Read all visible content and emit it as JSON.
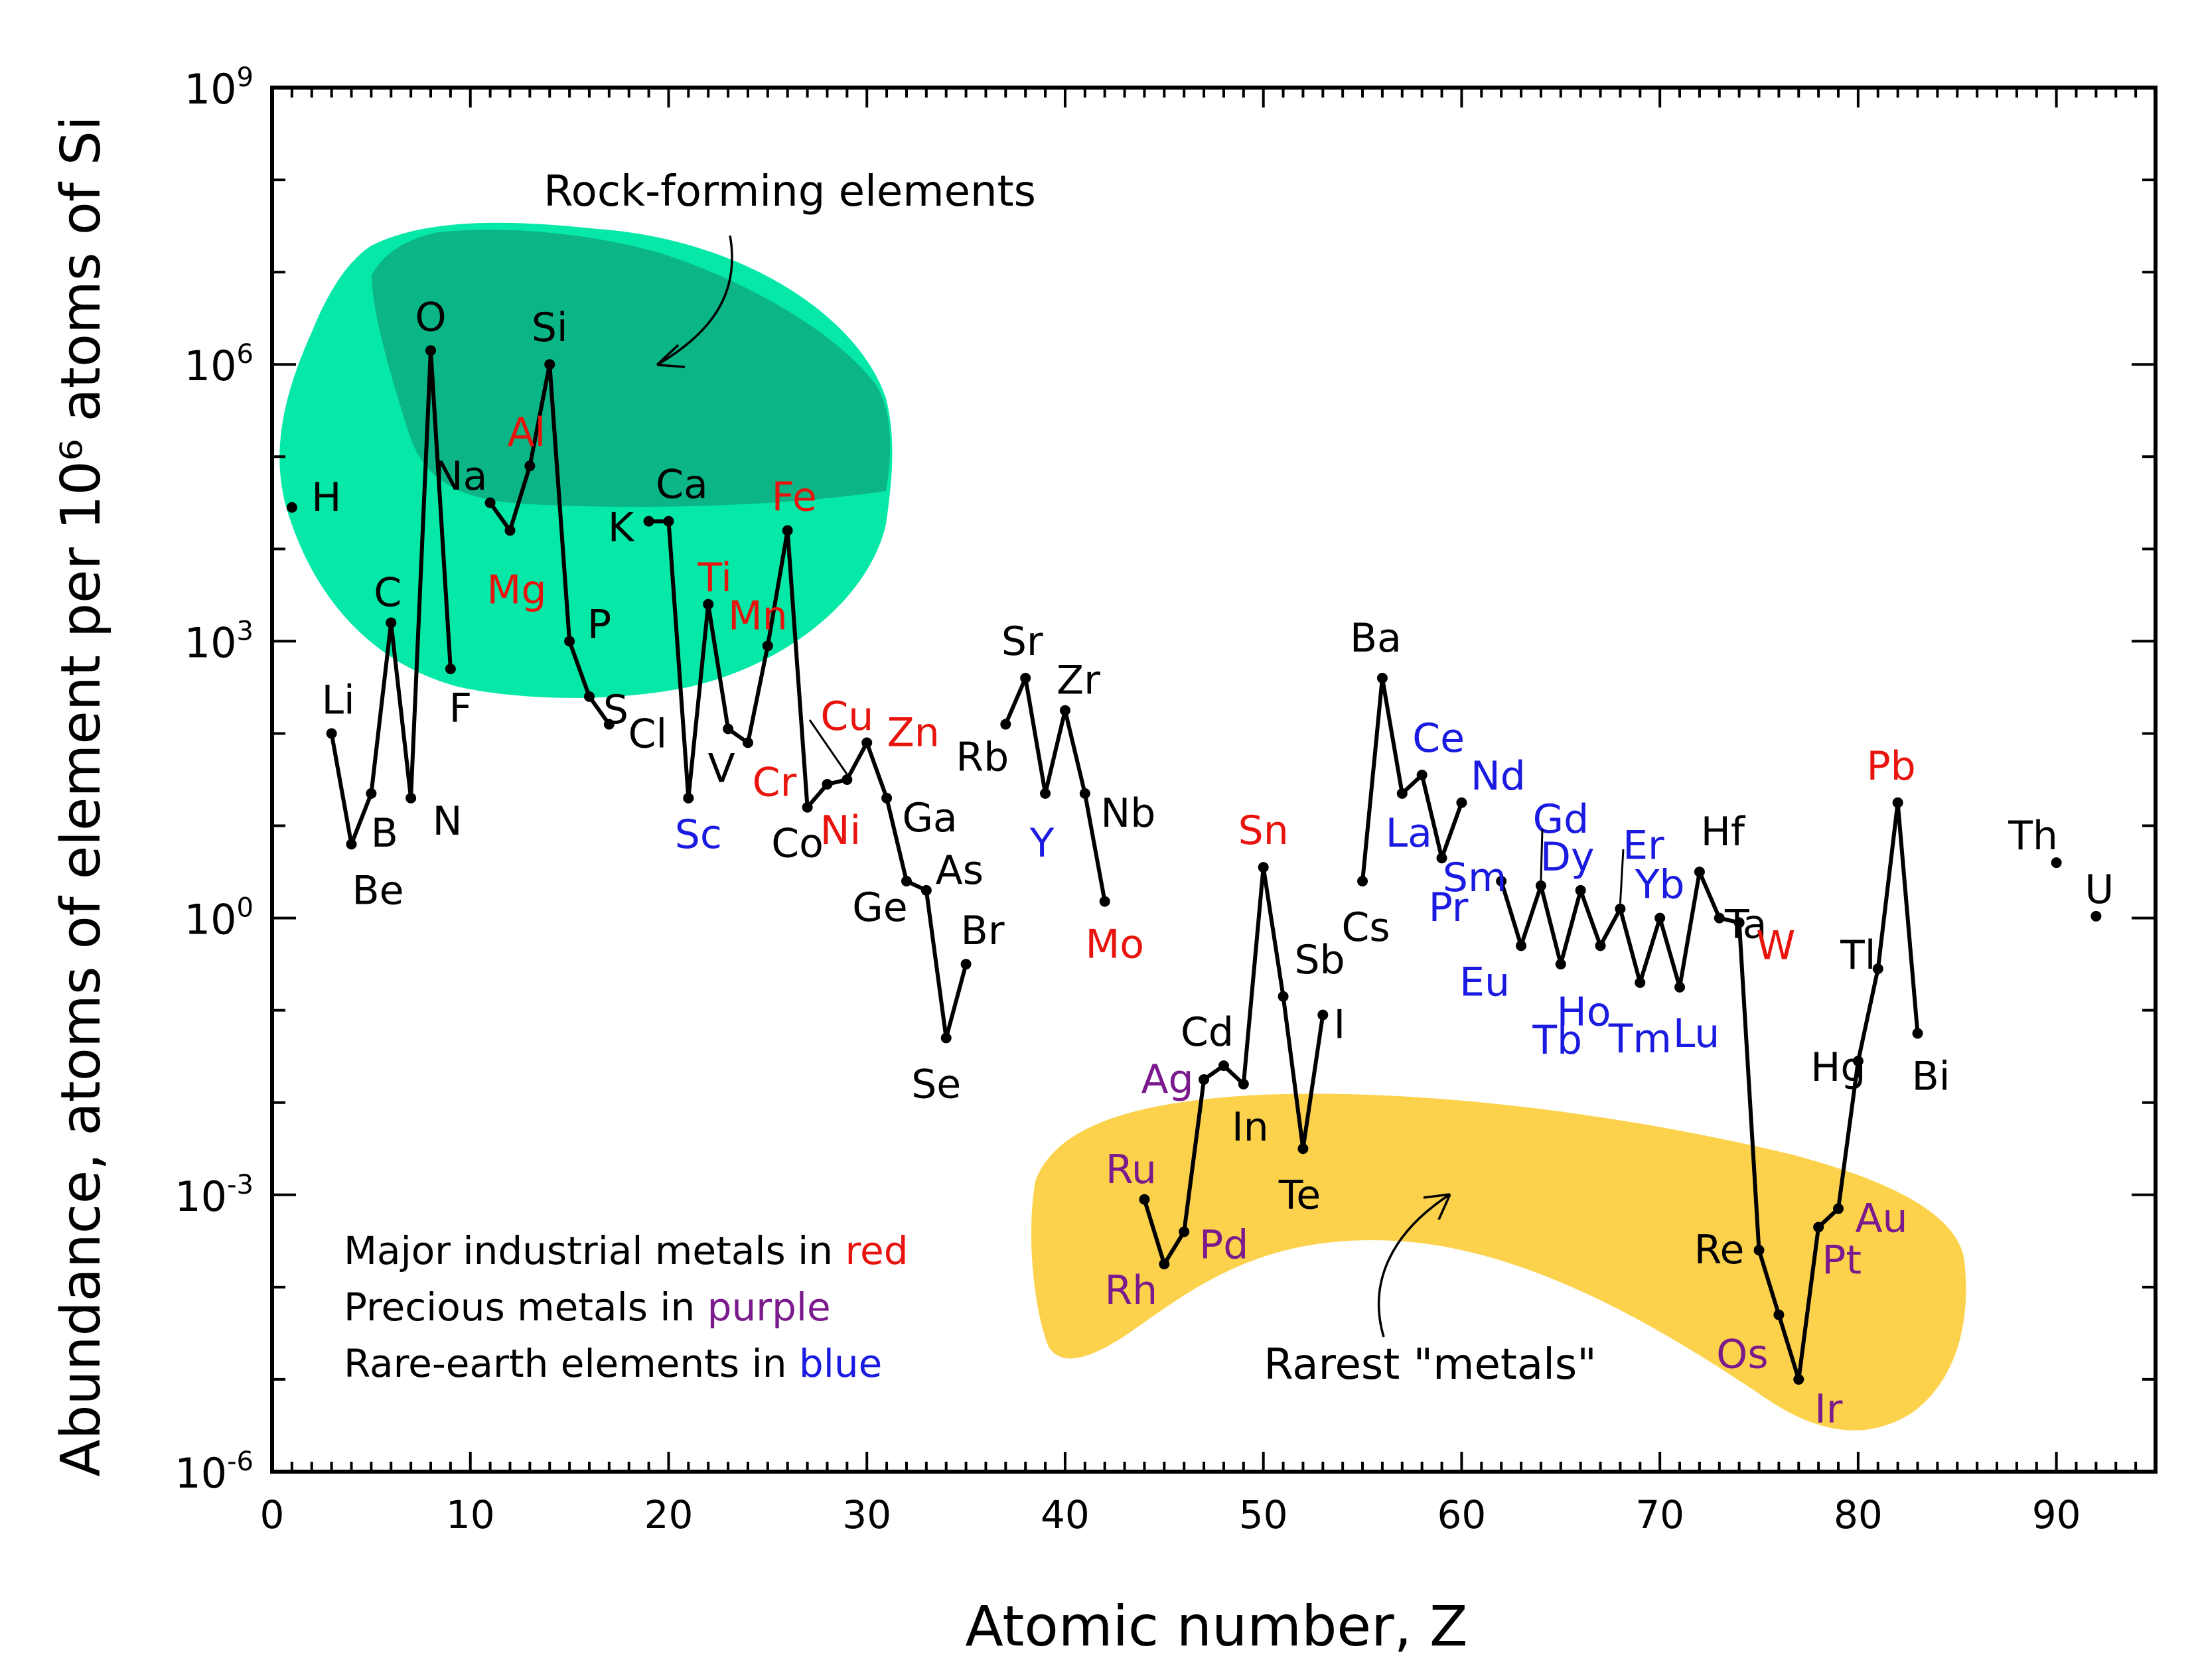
{
  "chart_data": {
    "type": "line",
    "title": "",
    "xlabel": "Atomic number, Z",
    "ylabel": "Abundance, atoms of element per 10⁶ atoms of Si",
    "xlim": [
      0,
      95
    ],
    "ylim_log10": [
      -6,
      9
    ],
    "y_scale": "log",
    "x_ticks": [
      "0",
      "10",
      "20",
      "30",
      "40",
      "50",
      "60",
      "70",
      "80",
      "90"
    ],
    "y_ticks": [
      {
        "base": "10",
        "exp": "-6"
      },
      {
        "base": "10",
        "exp": "-3"
      },
      {
        "base": "10",
        "exp": "0"
      },
      {
        "base": "10",
        "exp": "3"
      },
      {
        "base": "10",
        "exp": "6"
      },
      {
        "base": "10",
        "exp": "9"
      }
    ],
    "colors": {
      "black": "#000000",
      "red": "#e8130c",
      "purple": "#7a1a8c",
      "blue": "#1a1ae0",
      "rock_region": "#06e8a8",
      "rock_region_dark": "#0bb585",
      "rare_region": "#fcd24c"
    },
    "series": [
      {
        "points": [
          [
            1,
            4.45
          ]
        ]
      },
      {
        "points": [
          [
            3,
            2.0
          ],
          [
            4,
            0.8
          ],
          [
            5,
            1.35
          ],
          [
            6,
            3.2
          ],
          [
            7,
            1.3
          ],
          [
            8,
            6.15
          ],
          [
            9,
            2.7
          ]
        ]
      },
      {
        "points": [
          [
            11,
            4.5
          ],
          [
            12,
            4.2
          ],
          [
            13,
            4.9
          ],
          [
            14,
            6.0
          ],
          [
            15,
            3.0
          ],
          [
            16,
            2.4
          ],
          [
            17,
            2.1
          ]
        ]
      },
      {
        "points": [
          [
            19,
            4.3
          ],
          [
            20,
            4.3
          ],
          [
            21,
            1.3
          ],
          [
            22,
            3.4
          ],
          [
            23,
            2.05
          ],
          [
            24,
            1.9
          ],
          [
            25,
            2.95
          ],
          [
            26,
            4.2
          ],
          [
            27,
            1.2
          ],
          [
            28,
            1.45
          ],
          [
            29,
            1.5
          ],
          [
            30,
            1.9
          ],
          [
            31,
            1.3
          ],
          [
            32,
            0.4
          ],
          [
            33,
            0.3
          ],
          [
            34,
            -1.3
          ],
          [
            35,
            -0.5
          ]
        ]
      },
      {
        "points": [
          [
            37,
            2.1
          ],
          [
            38,
            2.6
          ],
          [
            39,
            1.35
          ],
          [
            40,
            2.25
          ],
          [
            41,
            1.35
          ],
          [
            42,
            0.18
          ]
        ]
      },
      {
        "points": [
          [
            44,
            -3.05
          ],
          [
            45,
            -3.75
          ],
          [
            46,
            -3.4
          ],
          [
            47,
            -1.75
          ],
          [
            48,
            -1.6
          ],
          [
            49,
            -1.8
          ],
          [
            50,
            0.55
          ],
          [
            51,
            -0.85
          ],
          [
            52,
            -2.5
          ],
          [
            53,
            -1.05
          ]
        ]
      },
      {
        "points": [
          [
            55,
            0.4
          ],
          [
            56,
            2.6
          ],
          [
            57,
            1.35
          ],
          [
            58,
            1.55
          ],
          [
            59,
            0.65
          ],
          [
            60,
            1.25
          ]
        ]
      },
      {
        "points": [
          [
            62,
            0.4
          ],
          [
            63,
            -0.3
          ],
          [
            64,
            0.35
          ],
          [
            65,
            -0.5
          ],
          [
            66,
            0.3
          ],
          [
            67,
            -0.3
          ],
          [
            68,
            0.1
          ],
          [
            69,
            -0.7
          ],
          [
            70,
            0.0
          ],
          [
            71,
            -0.75
          ],
          [
            72,
            0.5
          ],
          [
            73,
            0.0
          ],
          [
            74,
            -0.05
          ],
          [
            75,
            -3.6
          ],
          [
            76,
            -4.3
          ],
          [
            77,
            -5.0
          ],
          [
            78,
            -3.35
          ],
          [
            79,
            -3.15
          ],
          [
            80,
            -1.55
          ],
          [
            81,
            -0.55
          ],
          [
            82,
            1.25
          ],
          [
            83,
            -1.25
          ]
        ]
      },
      {
        "points": [
          [
            90,
            0.6
          ]
        ]
      },
      {
        "points": [
          [
            92,
            0.02
          ]
        ]
      }
    ],
    "element_labels": [
      {
        "text": "H",
        "z": 1,
        "logy": 4.45,
        "color": "black"
      },
      {
        "text": "Li",
        "z": 3,
        "logy": 2.0,
        "color": "black"
      },
      {
        "text": "Be",
        "z": 4,
        "logy": 0.8,
        "color": "black"
      },
      {
        "text": "B",
        "z": 5,
        "logy": 1.35,
        "color": "black"
      },
      {
        "text": "C",
        "z": 6,
        "logy": 3.2,
        "color": "black"
      },
      {
        "text": "N",
        "z": 7,
        "logy": 1.3,
        "color": "black"
      },
      {
        "text": "O",
        "z": 8,
        "logy": 6.15,
        "color": "black"
      },
      {
        "text": "F",
        "z": 9,
        "logy": 2.7,
        "color": "black"
      },
      {
        "text": "Na",
        "z": 11,
        "logy": 4.5,
        "color": "black"
      },
      {
        "text": "Mg",
        "z": 12,
        "logy": 4.2,
        "color": "red"
      },
      {
        "text": "Al",
        "z": 13,
        "logy": 4.9,
        "color": "red"
      },
      {
        "text": "Si",
        "z": 14,
        "logy": 6.0,
        "color": "black"
      },
      {
        "text": "P",
        "z": 15,
        "logy": 3.0,
        "color": "black"
      },
      {
        "text": "S",
        "z": 16,
        "logy": 2.4,
        "color": "black"
      },
      {
        "text": "Cl",
        "z": 17,
        "logy": 2.1,
        "color": "black"
      },
      {
        "text": "K",
        "z": 19,
        "logy": 4.3,
        "color": "black"
      },
      {
        "text": "Ca",
        "z": 20,
        "logy": 4.3,
        "color": "black"
      },
      {
        "text": "Sc",
        "z": 21,
        "logy": 1.3,
        "color": "blue"
      },
      {
        "text": "Ti",
        "z": 22,
        "logy": 3.4,
        "color": "red"
      },
      {
        "text": "V",
        "z": 23,
        "logy": 2.05,
        "color": "black"
      },
      {
        "text": "Cr",
        "z": 24,
        "logy": 1.9,
        "color": "red"
      },
      {
        "text": "Mn",
        "z": 25,
        "logy": 2.95,
        "color": "red"
      },
      {
        "text": "Fe",
        "z": 26,
        "logy": 4.2,
        "color": "red"
      },
      {
        "text": "Co",
        "z": 27,
        "logy": 1.2,
        "color": "black"
      },
      {
        "text": "Ni",
        "z": 28,
        "logy": 1.45,
        "color": "red"
      },
      {
        "text": "Cu",
        "z": 29,
        "logy": 1.5,
        "color": "red"
      },
      {
        "text": "Zn",
        "z": 30,
        "logy": 1.9,
        "color": "red"
      },
      {
        "text": "Ga",
        "z": 31,
        "logy": 1.3,
        "color": "black"
      },
      {
        "text": "Ge",
        "z": 32,
        "logy": 0.4,
        "color": "black"
      },
      {
        "text": "As",
        "z": 33,
        "logy": 0.3,
        "color": "black"
      },
      {
        "text": "Se",
        "z": 34,
        "logy": -1.3,
        "color": "black"
      },
      {
        "text": "Br",
        "z": 35,
        "logy": -0.5,
        "color": "black"
      },
      {
        "text": "Rb",
        "z": 37,
        "logy": 2.1,
        "color": "black"
      },
      {
        "text": "Sr",
        "z": 38,
        "logy": 2.6,
        "color": "black"
      },
      {
        "text": "Y",
        "z": 39,
        "logy": 1.35,
        "color": "blue"
      },
      {
        "text": "Zr",
        "z": 40,
        "logy": 2.25,
        "color": "black"
      },
      {
        "text": "Nb",
        "z": 41,
        "logy": 1.35,
        "color": "black"
      },
      {
        "text": "Mo",
        "z": 42,
        "logy": 0.18,
        "color": "red"
      },
      {
        "text": "Ru",
        "z": 44,
        "logy": -3.05,
        "color": "purple"
      },
      {
        "text": "Rh",
        "z": 45,
        "logy": -3.75,
        "color": "purple"
      },
      {
        "text": "Pd",
        "z": 46,
        "logy": -3.4,
        "color": "purple"
      },
      {
        "text": "Ag",
        "z": 47,
        "logy": -1.75,
        "color": "purple"
      },
      {
        "text": "Cd",
        "z": 48,
        "logy": -1.6,
        "color": "black"
      },
      {
        "text": "In",
        "z": 49,
        "logy": -1.8,
        "color": "black"
      },
      {
        "text": "Sn",
        "z": 50,
        "logy": 0.55,
        "color": "red"
      },
      {
        "text": "Sb",
        "z": 51,
        "logy": -0.85,
        "color": "black"
      },
      {
        "text": "Te",
        "z": 52,
        "logy": -2.5,
        "color": "black"
      },
      {
        "text": "I",
        "z": 53,
        "logy": -1.05,
        "color": "black"
      },
      {
        "text": "Cs",
        "z": 55,
        "logy": 0.4,
        "color": "black"
      },
      {
        "text": "Ba",
        "z": 56,
        "logy": 2.6,
        "color": "black"
      },
      {
        "text": "La",
        "z": 57,
        "logy": 1.35,
        "color": "blue"
      },
      {
        "text": "Ce",
        "z": 58,
        "logy": 1.55,
        "color": "blue"
      },
      {
        "text": "Pr",
        "z": 59,
        "logy": 0.65,
        "color": "blue"
      },
      {
        "text": "Nd",
        "z": 60,
        "logy": 1.25,
        "color": "blue"
      },
      {
        "text": "Sm",
        "z": 62,
        "logy": 0.4,
        "color": "blue"
      },
      {
        "text": "Eu",
        "z": 63,
        "logy": -0.3,
        "color": "blue"
      },
      {
        "text": "Gd",
        "z": 64,
        "logy": 0.35,
        "color": "blue"
      },
      {
        "text": "Tb",
        "z": 65,
        "logy": -0.5,
        "color": "blue"
      },
      {
        "text": "Dy",
        "z": 66,
        "logy": 0.3,
        "color": "blue"
      },
      {
        "text": "Ho",
        "z": 67,
        "logy": -0.3,
        "color": "blue"
      },
      {
        "text": "Er",
        "z": 68,
        "logy": 0.1,
        "color": "blue"
      },
      {
        "text": "Tm",
        "z": 69,
        "logy": -0.7,
        "color": "blue"
      },
      {
        "text": "Yb",
        "z": 70,
        "logy": 0.0,
        "color": "blue"
      },
      {
        "text": "Lu",
        "z": 71,
        "logy": -0.75,
        "color": "blue"
      },
      {
        "text": "Hf",
        "z": 72,
        "logy": 0.5,
        "color": "black"
      },
      {
        "text": "Ta",
        "z": 73,
        "logy": 0.0,
        "color": "black"
      },
      {
        "text": "W",
        "z": 74,
        "logy": -0.05,
        "color": "red"
      },
      {
        "text": "Re",
        "z": 75,
        "logy": -3.6,
        "color": "black"
      },
      {
        "text": "Os",
        "z": 76,
        "logy": -4.3,
        "color": "purple"
      },
      {
        "text": "Ir",
        "z": 77,
        "logy": -5.0,
        "color": "purple"
      },
      {
        "text": "Pt",
        "z": 78,
        "logy": -3.35,
        "color": "purple"
      },
      {
        "text": "Au",
        "z": 79,
        "logy": -3.15,
        "color": "purple"
      },
      {
        "text": "Hg",
        "z": 80,
        "logy": -1.55,
        "color": "black"
      },
      {
        "text": "Tl",
        "z": 81,
        "logy": -0.55,
        "color": "black"
      },
      {
        "text": "Pb",
        "z": 82,
        "logy": 1.25,
        "color": "red"
      },
      {
        "text": "Bi",
        "z": 83,
        "logy": -1.25,
        "color": "black"
      },
      {
        "text": "Th",
        "z": 90,
        "logy": 0.6,
        "color": "black"
      },
      {
        "text": "U",
        "z": 92,
        "logy": 0.02,
        "color": "black"
      }
    ],
    "annotations": {
      "rock_forming": "Rock-forming elements",
      "rarest_metals": "Rarest \"metals\""
    },
    "legend_notes": [
      {
        "prefix": "Major industrial metals in ",
        "word": "red",
        "color": "red"
      },
      {
        "prefix": "Precious metals in ",
        "word": "purple",
        "color": "purple"
      },
      {
        "prefix": "Rare-earth elements in ",
        "word": "blue",
        "color": "blue"
      }
    ]
  }
}
